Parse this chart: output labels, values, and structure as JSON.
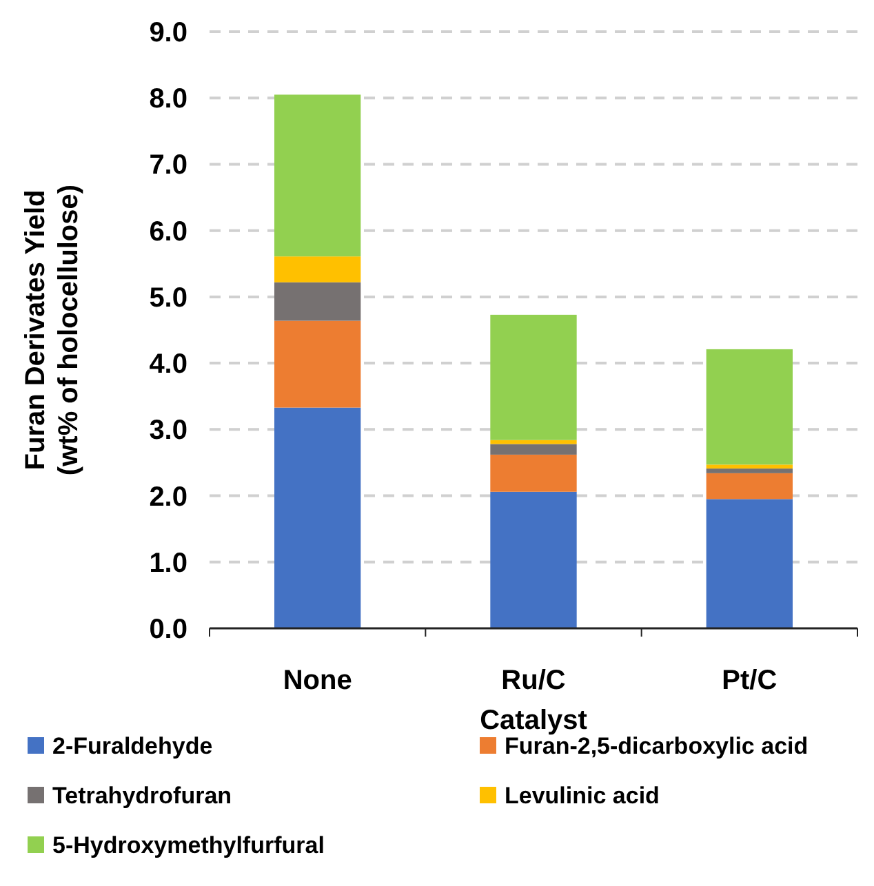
{
  "chart_data": {
    "type": "bar",
    "stacked": true,
    "xlabel": "Catalyst",
    "ylabel": "Furan Derivates Yield\n(wt% of holocellulose)",
    "categories": [
      "None",
      "Ru/C",
      "Pt/C"
    ],
    "series": [
      {
        "name": "2-Furaldehyde",
        "color": "#4472c4",
        "values": [
          3.33,
          2.06,
          1.95
        ]
      },
      {
        "name": "Furan-2,5-dicarboxylic acid",
        "color": "#ed7d31",
        "values": [
          1.31,
          0.56,
          0.39
        ]
      },
      {
        "name": "Tetrahydrofuran",
        "color": "#767171",
        "values": [
          0.58,
          0.16,
          0.07
        ]
      },
      {
        "name": "Levulinic acid",
        "color": "#ffc000",
        "values": [
          0.39,
          0.06,
          0.06
        ]
      },
      {
        "name": "5-Hydroxymethylfurfural",
        "color": "#92d050",
        "values": [
          2.44,
          1.89,
          1.74
        ]
      }
    ],
    "ylim": [
      0,
      9
    ],
    "yticks": [
      {
        "value": 0,
        "label": "0.0"
      },
      {
        "value": 1,
        "label": "1.0"
      },
      {
        "value": 2,
        "label": "2.0"
      },
      {
        "value": 3,
        "label": "3.0"
      },
      {
        "value": 4,
        "label": "4.0"
      },
      {
        "value": 5,
        "label": "5.0"
      },
      {
        "value": 6,
        "label": "6.0"
      },
      {
        "value": 7,
        "label": "7.0"
      },
      {
        "value": 8,
        "label": "8.0"
      },
      {
        "value": 9,
        "label": "9.0"
      }
    ],
    "grid": "y",
    "legend": "bottom"
  }
}
